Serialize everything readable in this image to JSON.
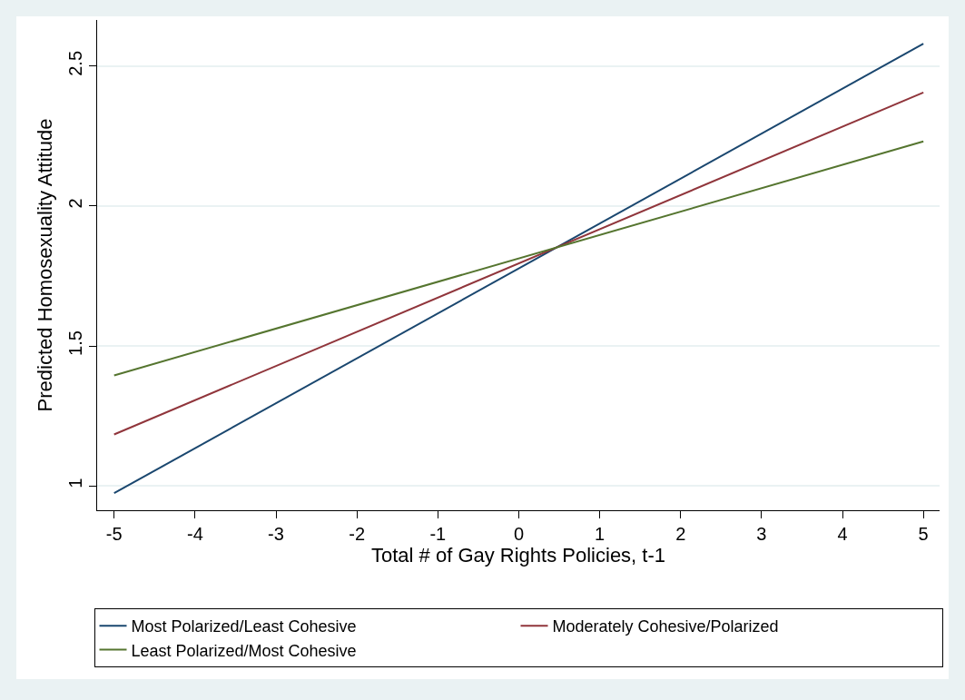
{
  "chart_data": {
    "type": "line",
    "xlabel": "Total # of Gay Rights Policies, t-1",
    "ylabel": "Predicted Homosexuality Attitude",
    "x": [
      -5,
      5
    ],
    "series": [
      {
        "name": "Most Polarized/Least Cohesive",
        "color": "#1a476f",
        "values": [
          0.974,
          2.58
        ]
      },
      {
        "name": "Moderately Cohesive/Polarized",
        "color": "#90353b",
        "values": [
          1.184,
          2.406
        ]
      },
      {
        "name": "Least Polarized/Most Cohesive",
        "color": "#55752f",
        "values": [
          1.395,
          2.231
        ]
      }
    ],
    "xlim": [
      -5.21,
      5.2
    ],
    "xticks": [
      -5,
      -4,
      -3,
      -2,
      -1,
      0,
      1,
      2,
      3,
      4,
      5
    ],
    "ylim": [
      0.913,
      2.665
    ],
    "yticks": [
      1,
      1.5,
      2,
      2.5
    ],
    "grid": "y",
    "legend": "bottom",
    "marker": "none",
    "line_style": "solid"
  }
}
